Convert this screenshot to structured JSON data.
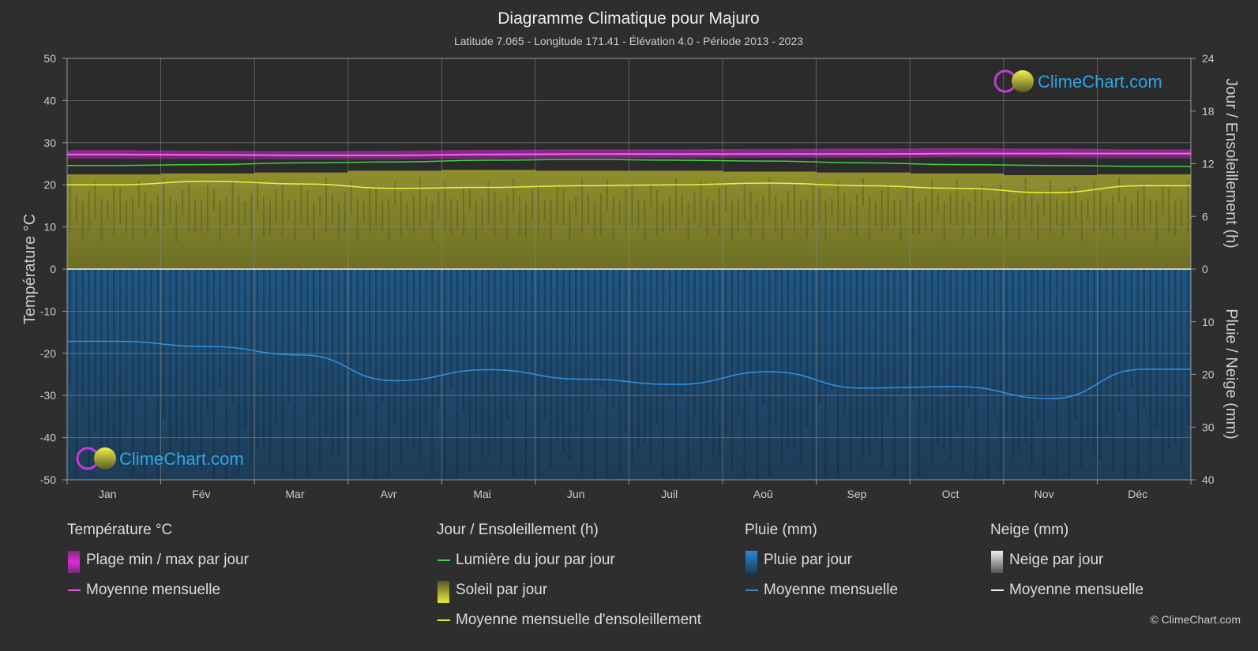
{
  "header": {
    "title": "Diagramme Climatique pour Majuro",
    "subtitle": "Latitude 7.065 - Longitude 171.41 - Élévation 4.0 - Période 2013 - 2023"
  },
  "logo_text": "ClimeChart.com",
  "copyright": "© ClimeChart.com",
  "chart_data": {
    "type": "line",
    "months": [
      "Jan",
      "Fév",
      "Mar",
      "Avr",
      "Mai",
      "Jun",
      "Juil",
      "Aoû",
      "Sep",
      "Oct",
      "Nov",
      "Déc"
    ],
    "left_axis": {
      "title": "Température °C",
      "ylim": [
        -50,
        50
      ],
      "ticks": [
        50,
        40,
        30,
        20,
        10,
        0,
        -10,
        -20,
        -30,
        -40,
        -50
      ]
    },
    "right_axis_top": {
      "title": "Jour / Ensoleillement (h)",
      "ylim": [
        0,
        24
      ],
      "ticks": [
        24,
        18,
        12,
        6,
        0
      ]
    },
    "right_axis_bottom": {
      "title": "Pluie / Neige (mm)",
      "ylim": [
        0,
        40
      ],
      "ticks": [
        0,
        10,
        20,
        30,
        40
      ]
    },
    "grid": true,
    "series": {
      "temp_max_daily": [
        28.2,
        28.1,
        28.0,
        28.1,
        28.3,
        28.4,
        28.4,
        28.5,
        28.6,
        28.7,
        28.6,
        28.4
      ],
      "temp_min_daily": [
        26.2,
        26.1,
        26.0,
        26.0,
        26.2,
        26.3,
        26.3,
        26.4,
        26.4,
        26.5,
        26.4,
        26.3
      ],
      "temp_monthly_mean": [
        27.2,
        27.1,
        27.0,
        27.0,
        27.2,
        27.3,
        27.3,
        27.3,
        27.3,
        27.4,
        27.4,
        27.4
      ],
      "daylight_hours": [
        11.8,
        11.9,
        12.1,
        12.2,
        12.4,
        12.5,
        12.4,
        12.3,
        12.1,
        11.9,
        11.8,
        11.7
      ],
      "sunshine_daily_max": [
        10.8,
        10.9,
        11.0,
        11.2,
        11.3,
        11.2,
        11.2,
        11.1,
        11.0,
        10.9,
        10.7,
        10.8
      ],
      "sunshine_monthly_mean": [
        9.6,
        10.0,
        9.7,
        9.2,
        9.3,
        9.5,
        9.6,
        9.8,
        9.5,
        9.2,
        8.7,
        9.5
      ],
      "rain_monthly_mean_mm": [
        13.7,
        14.7,
        16.3,
        21.2,
        19.1,
        20.9,
        21.9,
        19.5,
        22.6,
        22.3,
        24.6,
        19.0
      ]
    }
  },
  "legend": {
    "temp": {
      "heading": "Température °C",
      "items": [
        {
          "label": "Plage min / max par jour",
          "color": "#d62bd6"
        },
        {
          "label": "Moyenne mensuelle",
          "color": "#e05ae0"
        }
      ]
    },
    "sun": {
      "heading": "Jour / Ensoleillement (h)",
      "items": [
        {
          "label": "Lumière du jour par jour",
          "color": "#3fd23f"
        },
        {
          "label": "Soleil par jour",
          "color": "#c8c83a"
        },
        {
          "label": "Moyenne mensuelle d'ensoleillement",
          "color": "#e4e432"
        }
      ]
    },
    "rain": {
      "heading": "Pluie (mm)",
      "items": [
        {
          "label": "Pluie par jour",
          "color": "#2a88d8"
        },
        {
          "label": "Moyenne mensuelle",
          "color": "#2a88d8"
        }
      ]
    },
    "snow": {
      "heading": "Neige (mm)",
      "items": [
        {
          "label": "Neige par jour",
          "color": "#cccccc"
        },
        {
          "label": "Moyenne mensuelle",
          "color": "#eeeeee"
        }
      ]
    }
  }
}
